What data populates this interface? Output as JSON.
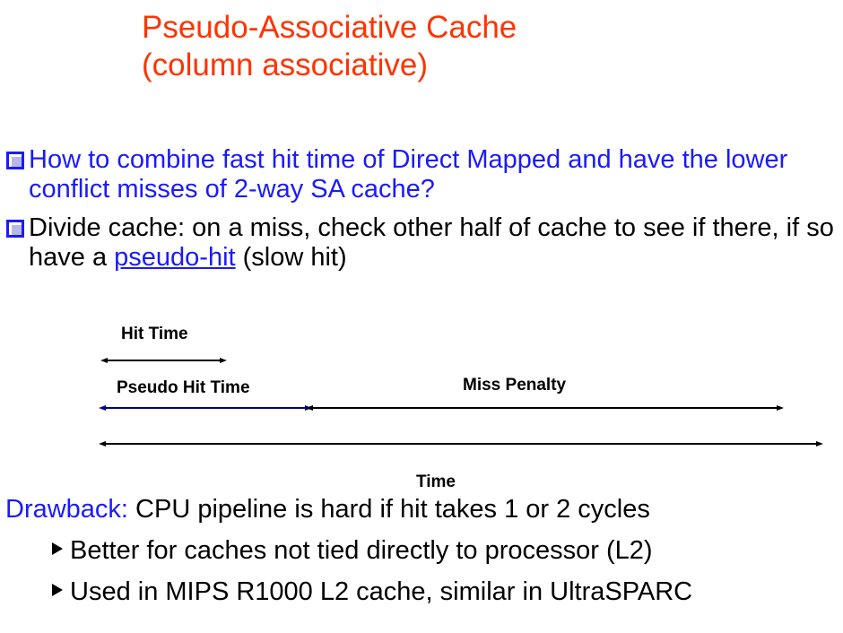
{
  "slide": {
    "title_line1": "Pseudo-Associative Cache",
    "title_line2": "(column associative)",
    "bullet1": "How to combine fast hit time of Direct Mapped and have the lower conflict misses of 2-way SA cache?",
    "bullet2_before": "Divide cache: on a miss, check other half of cache to see if there, if so have a ",
    "bullet2_link": "pseudo-hit",
    "bullet2_after": "  (slow hit)",
    "diagram": {
      "hit_time": "Hit Time",
      "pseudo_hit_time": "Pseudo Hit Time",
      "miss_penalty": "Miss Penalty",
      "time": "Time",
      "pseudo_arrow_color": "#00008b"
    },
    "drawback_label": "Drawback:",
    "drawback_text": " CPU pipeline is hard if hit takes 1 or 2 cycles",
    "sub1": "Better for caches not tied directly to  processor (L2)",
    "sub2": "Used in MIPS R1000 L2 cache, similar in UltraSPARC"
  },
  "colors": {
    "title": "#ff3300",
    "accent": "#1a1aff"
  }
}
